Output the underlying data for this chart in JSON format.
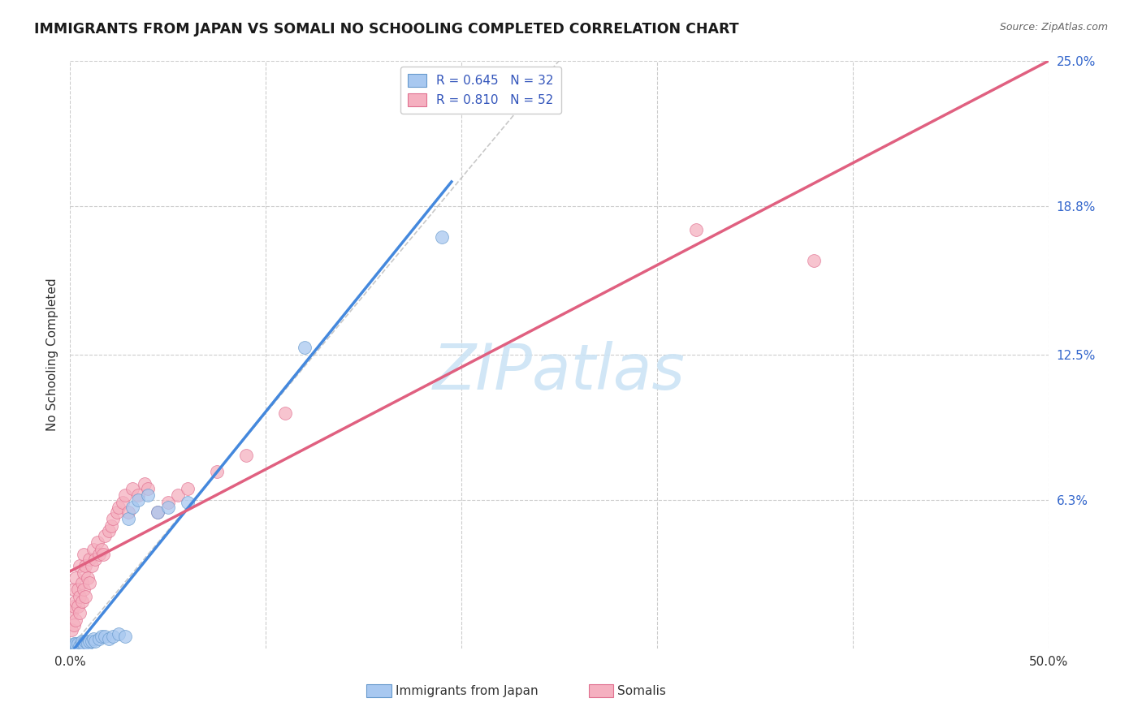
{
  "title": "IMMIGRANTS FROM JAPAN VS SOMALI NO SCHOOLING COMPLETED CORRELATION CHART",
  "source": "Source: ZipAtlas.com",
  "ylabel": "No Schooling Completed",
  "xlim": [
    0.0,
    0.5
  ],
  "ylim": [
    0.0,
    0.25
  ],
  "ytick_vals": [
    0.063,
    0.125,
    0.188,
    0.25
  ],
  "ytick_labels": [
    "6.3%",
    "12.5%",
    "18.8%",
    "25.0%"
  ],
  "xtick_vals": [
    0.0,
    0.1,
    0.2,
    0.3,
    0.4,
    0.5
  ],
  "xtick_labels": [
    "0.0%",
    "",
    "",
    "",
    "",
    "50.0%"
  ],
  "grid_color": "#cccccc",
  "background_color": "#ffffff",
  "japan_color": "#a8c8f0",
  "japan_edge": "#6699cc",
  "japan_line": "#4488dd",
  "somali_color": "#f5b0c0",
  "somali_edge": "#e07090",
  "somali_line": "#e06080",
  "legend_box_color": "#eeeeee",
  "legend_text_color": "#3355bb",
  "japan_R": "0.645",
  "japan_N": "32",
  "somali_R": "0.810",
  "somali_N": "52",
  "japan_label": "Immigrants from Japan",
  "somali_label": "Somalis",
  "diagonal_color": "#bbbbbb",
  "watermark": "ZIPatlas",
  "watermark_color": "#cce4f5",
  "japan_x": [
    0.001,
    0.002,
    0.002,
    0.003,
    0.003,
    0.004,
    0.005,
    0.006,
    0.006,
    0.007,
    0.008,
    0.009,
    0.01,
    0.011,
    0.012,
    0.013,
    0.015,
    0.016,
    0.018,
    0.02,
    0.022,
    0.025,
    0.028,
    0.03,
    0.032,
    0.035,
    0.04,
    0.045,
    0.05,
    0.06,
    0.12,
    0.19
  ],
  "japan_y": [
    0.001,
    0.001,
    0.002,
    0.001,
    0.002,
    0.002,
    0.001,
    0.002,
    0.003,
    0.002,
    0.003,
    0.002,
    0.003,
    0.003,
    0.004,
    0.003,
    0.004,
    0.005,
    0.005,
    0.004,
    0.005,
    0.006,
    0.005,
    0.055,
    0.06,
    0.063,
    0.065,
    0.058,
    0.06,
    0.062,
    0.128,
    0.175
  ],
  "somali_x": [
    0.001,
    0.001,
    0.002,
    0.002,
    0.002,
    0.003,
    0.003,
    0.003,
    0.004,
    0.004,
    0.005,
    0.005,
    0.005,
    0.006,
    0.006,
    0.007,
    0.007,
    0.007,
    0.008,
    0.008,
    0.009,
    0.01,
    0.01,
    0.011,
    0.012,
    0.013,
    0.014,
    0.015,
    0.016,
    0.017,
    0.018,
    0.02,
    0.021,
    0.022,
    0.024,
    0.025,
    0.027,
    0.028,
    0.03,
    0.032,
    0.035,
    0.038,
    0.04,
    0.045,
    0.05,
    0.055,
    0.06,
    0.075,
    0.09,
    0.11,
    0.32,
    0.38
  ],
  "somali_y": [
    0.008,
    0.015,
    0.01,
    0.018,
    0.025,
    0.012,
    0.02,
    0.03,
    0.018,
    0.025,
    0.015,
    0.022,
    0.035,
    0.02,
    0.028,
    0.025,
    0.032,
    0.04,
    0.022,
    0.035,
    0.03,
    0.028,
    0.038,
    0.035,
    0.042,
    0.038,
    0.045,
    0.04,
    0.042,
    0.04,
    0.048,
    0.05,
    0.052,
    0.055,
    0.058,
    0.06,
    0.062,
    0.065,
    0.058,
    0.068,
    0.065,
    0.07,
    0.068,
    0.058,
    0.062,
    0.065,
    0.068,
    0.075,
    0.082,
    0.1,
    0.178,
    0.165
  ]
}
